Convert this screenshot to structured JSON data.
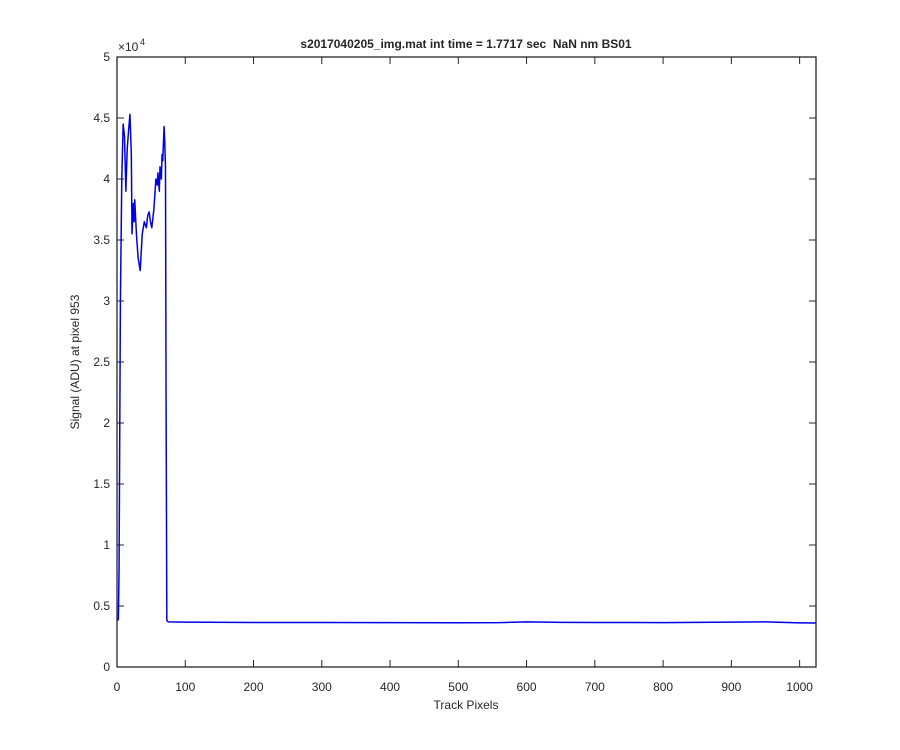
{
  "chart_data": {
    "type": "line",
    "title": "s2017040205_img.mat int time = 1.7717 sec  NaN nm BS01",
    "x_label": "Track Pixels",
    "y_label": "Signal (ADU) at pixel 953",
    "y_multiplier": {
      "base": "×10",
      "exponent": "4"
    },
    "color": "#0000e6",
    "x": [
      0,
      2,
      3,
      5,
      7,
      9,
      11,
      13,
      15,
      17,
      19,
      21,
      22,
      24,
      25,
      26,
      28,
      29,
      31,
      34,
      37,
      40,
      43,
      45,
      47,
      49,
      51,
      54,
      57,
      59,
      60,
      62,
      63,
      65,
      66,
      67,
      69,
      70,
      71,
      72,
      73,
      75,
      100,
      200,
      300,
      400,
      500,
      560,
      600,
      650,
      700,
      800,
      900,
      950,
      1000,
      1024
    ],
    "values": [
      3800,
      3900,
      8000,
      30000,
      40000,
      44500,
      43500,
      39000,
      42500,
      44000,
      45300,
      42000,
      35500,
      38000,
      36500,
      38300,
      36000,
      35000,
      33500,
      32500,
      35500,
      36500,
      36000,
      37000,
      37300,
      36500,
      36000,
      37500,
      40000,
      39500,
      40500,
      39000,
      41000,
      40000,
      42000,
      41500,
      44300,
      43000,
      41000,
      20000,
      3800,
      3700,
      3680,
      3650,
      3650,
      3640,
      3630,
      3640,
      3700,
      3660,
      3650,
      3640,
      3680,
      3700,
      3620,
      3610
    ],
    "xlim": [
      0,
      1024
    ],
    "xticks": [
      0,
      100,
      200,
      300,
      400,
      500,
      600,
      700,
      800,
      900,
      1000
    ],
    "ylim": [
      0,
      50000
    ],
    "yticks": [
      0,
      {
        "value": 5000,
        "label": "0.5"
      },
      {
        "value": 10000,
        "label": "1"
      },
      {
        "value": 15000,
        "label": "1.5"
      },
      {
        "value": 20000,
        "label": "2"
      },
      {
        "value": 25000,
        "label": "2.5"
      },
      {
        "value": 30000,
        "label": "3"
      },
      {
        "value": 35000,
        "label": "3.5"
      },
      {
        "value": 40000,
        "label": "4"
      },
      {
        "value": 45000,
        "label": "4.5"
      },
      {
        "value": 50000,
        "label": "5"
      }
    ],
    "grid": false
  }
}
